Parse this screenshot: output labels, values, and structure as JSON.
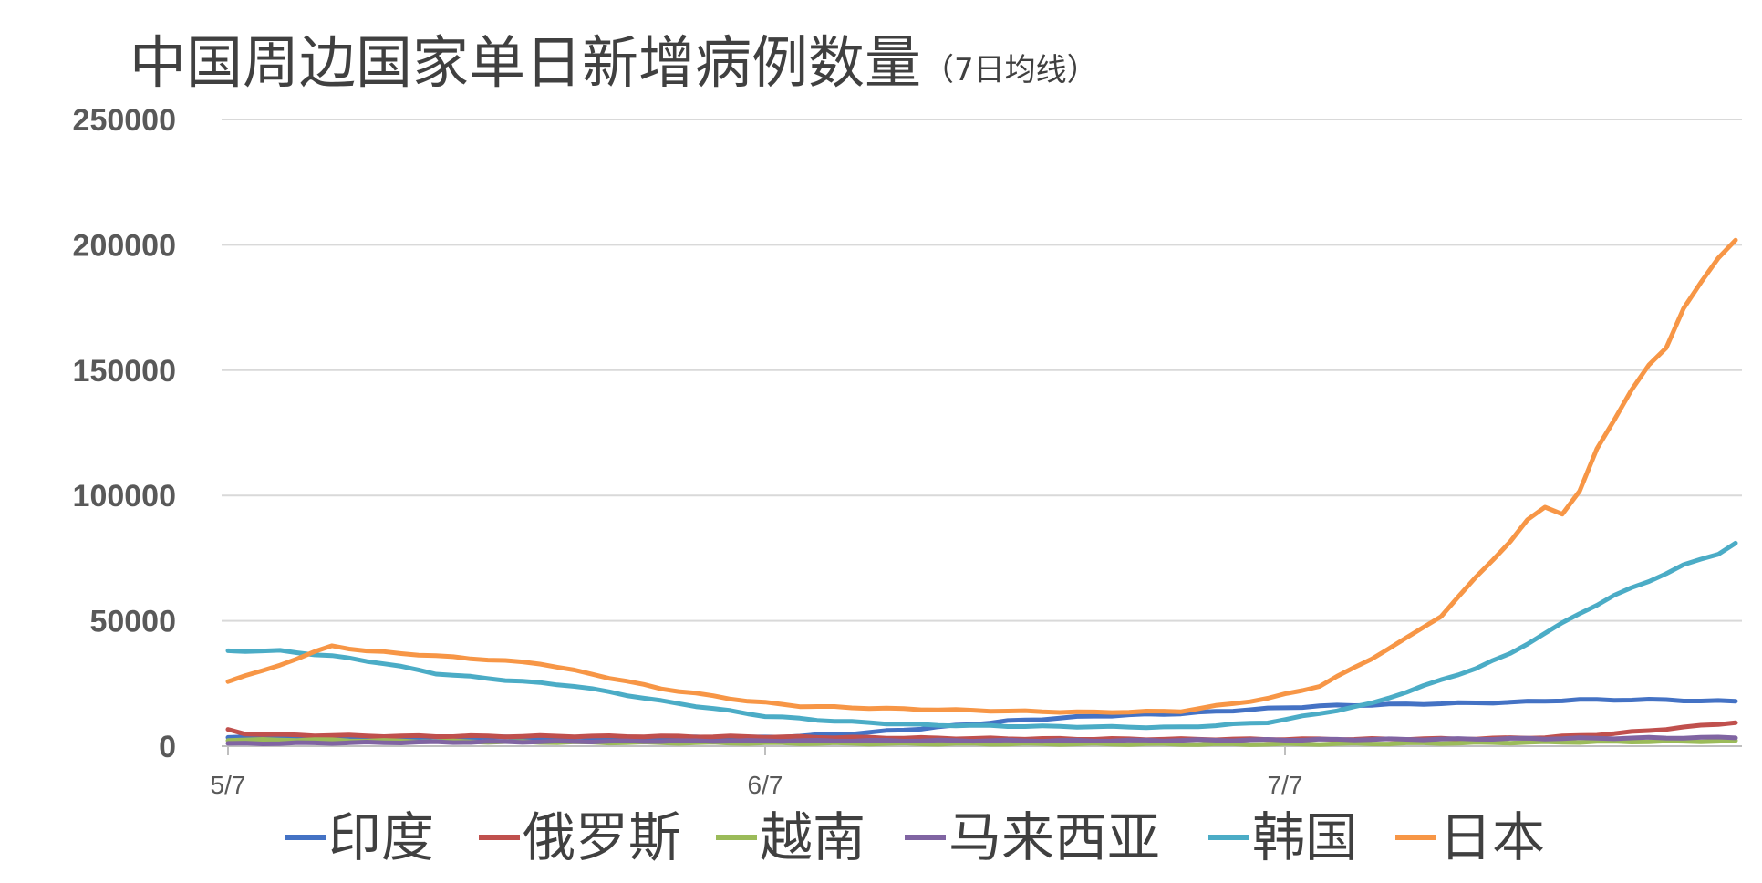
{
  "chart_data": {
    "type": "line",
    "title": "中国周边国家单日新增病例数量",
    "subtitle": "（7日均线）",
    "xlabel": "",
    "ylabel": "",
    "x_ticks": [
      "5/7",
      "6/7",
      "7/7"
    ],
    "x_tick_index": [
      0,
      31,
      61
    ],
    "num_points": 88,
    "ylim": [
      0,
      250000
    ],
    "y_ticks": [
      "0",
      "50000",
      "100000",
      "150000",
      "200000",
      "250000"
    ],
    "y_tick_values": [
      0,
      50000,
      100000,
      150000,
      200000,
      250000
    ],
    "grid": true,
    "legend_position": "bottom",
    "series": [
      {
        "name": "印度",
        "color": "#4472C4",
        "points": [
          [
            0,
            3500
          ],
          [
            31,
            3500
          ],
          [
            36,
            5000
          ],
          [
            40,
            7000
          ],
          [
            45,
            10000
          ],
          [
            50,
            12000
          ],
          [
            55,
            13000
          ],
          [
            60,
            15000
          ],
          [
            63,
            16000
          ],
          [
            66,
            16500
          ],
          [
            70,
            17000
          ],
          [
            74,
            17500
          ],
          [
            76,
            18000
          ],
          [
            78,
            18500
          ],
          [
            83,
            18500
          ],
          [
            85,
            18000
          ],
          [
            87,
            18000
          ]
        ]
      },
      {
        "name": "俄罗斯",
        "color": "#C0504D",
        "points": [
          [
            0,
            6500
          ],
          [
            1,
            5000
          ],
          [
            3,
            4500
          ],
          [
            10,
            4000
          ],
          [
            20,
            4000
          ],
          [
            30,
            3800
          ],
          [
            45,
            3000
          ],
          [
            55,
            2800
          ],
          [
            65,
            2800
          ],
          [
            72,
            3000
          ],
          [
            76,
            3500
          ],
          [
            80,
            5000
          ],
          [
            84,
            7500
          ],
          [
            87,
            9500
          ]
        ]
      },
      {
        "name": "越南",
        "color": "#9BBB59",
        "points": [
          [
            0,
            2500
          ],
          [
            5,
            2500
          ],
          [
            10,
            2000
          ],
          [
            20,
            1500
          ],
          [
            40,
            1000
          ],
          [
            60,
            800
          ],
          [
            70,
            1200
          ],
          [
            80,
            1800
          ],
          [
            87,
            2000
          ]
        ]
      },
      {
        "name": "马来西亚",
        "color": "#8064A2",
        "points": [
          [
            0,
            1000
          ],
          [
            10,
            1500
          ],
          [
            25,
            2000
          ],
          [
            35,
            2200
          ],
          [
            50,
            2200
          ],
          [
            60,
            2500
          ],
          [
            70,
            2800
          ],
          [
            80,
            3200
          ],
          [
            87,
            3500
          ]
        ]
      },
      {
        "name": "韩国",
        "color": "#4BACC6",
        "points": [
          [
            0,
            38000
          ],
          [
            3,
            38000
          ],
          [
            6,
            36000
          ],
          [
            9,
            33000
          ],
          [
            12,
            29000
          ],
          [
            15,
            27000
          ],
          [
            20,
            24000
          ],
          [
            25,
            18000
          ],
          [
            28,
            15000
          ],
          [
            31,
            12000
          ],
          [
            35,
            10000
          ],
          [
            40,
            8500
          ],
          [
            45,
            8000
          ],
          [
            55,
            7500
          ],
          [
            60,
            9500
          ],
          [
            63,
            13000
          ],
          [
            66,
            17000
          ],
          [
            69,
            24000
          ],
          [
            72,
            31000
          ],
          [
            74,
            37000
          ],
          [
            76,
            45000
          ],
          [
            78,
            53000
          ],
          [
            80,
            60000
          ],
          [
            82,
            66000
          ],
          [
            84,
            72000
          ],
          [
            86,
            77000
          ],
          [
            87,
            81000
          ]
        ]
      },
      {
        "name": "日本",
        "color": "#F79646",
        "points": [
          [
            0,
            26000
          ],
          [
            2,
            30000
          ],
          [
            4,
            35000
          ],
          [
            6,
            40000
          ],
          [
            8,
            38000
          ],
          [
            12,
            36000
          ],
          [
            18,
            33000
          ],
          [
            25,
            23000
          ],
          [
            30,
            18000
          ],
          [
            33,
            16000
          ],
          [
            38,
            15000
          ],
          [
            45,
            14000
          ],
          [
            50,
            13500
          ],
          [
            55,
            14000
          ],
          [
            60,
            19000
          ],
          [
            63,
            24000
          ],
          [
            66,
            35000
          ],
          [
            68,
            43000
          ],
          [
            70,
            52000
          ],
          [
            72,
            67000
          ],
          [
            74,
            82000
          ],
          [
            75,
            90000
          ],
          [
            76,
            95000
          ],
          [
            77,
            93000
          ],
          [
            78,
            102000
          ],
          [
            79,
            118000
          ],
          [
            80,
            130000
          ],
          [
            81,
            143000
          ],
          [
            82,
            152000
          ],
          [
            83,
            158000
          ],
          [
            84,
            175000
          ],
          [
            85,
            186000
          ],
          [
            86,
            194000
          ],
          [
            87,
            201000
          ]
        ]
      }
    ]
  }
}
